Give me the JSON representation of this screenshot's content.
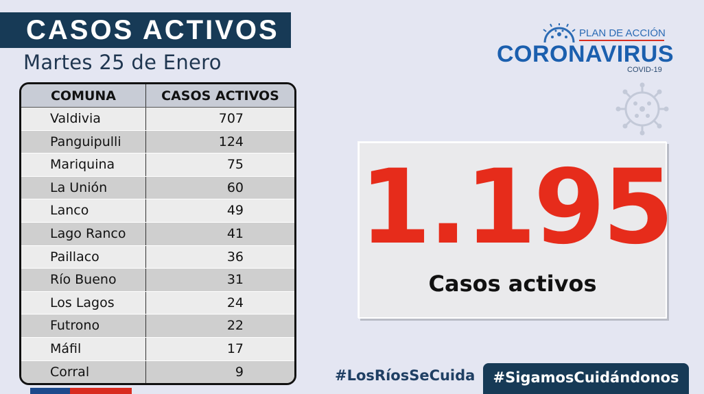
{
  "header": {
    "title": "CASOS ACTIVOS",
    "date": "Martes 25 de Enero"
  },
  "table": {
    "col1": "COMUNA",
    "col2": "CASOS ACTIVOS",
    "rows": [
      {
        "comuna": "Valdivia",
        "casos": "707"
      },
      {
        "comuna": "Panguipulli",
        "casos": "124"
      },
      {
        "comuna": "Mariquina",
        "casos": "75"
      },
      {
        "comuna": "La Unión",
        "casos": "60"
      },
      {
        "comuna": "Lanco",
        "casos": "49"
      },
      {
        "comuna": "Lago Ranco",
        "casos": "41"
      },
      {
        "comuna": "Paillaco",
        "casos": "36"
      },
      {
        "comuna": "Río Bueno",
        "casos": "31"
      },
      {
        "comuna": "Los Lagos",
        "casos": "24"
      },
      {
        "comuna": "Futrono",
        "casos": "22"
      },
      {
        "comuna": "Máfil",
        "casos": "17"
      },
      {
        "comuna": "Corral",
        "casos": "9"
      }
    ]
  },
  "logo": {
    "plan": "PLAN DE ACCIÓN",
    "main": "CORONAVIRUS",
    "sub": "COVID-19",
    "icon": "virus-icon"
  },
  "summary": {
    "total": "1.195",
    "label": "Casos activos"
  },
  "footer": {
    "hashtag1": "#LosRíosSeCuida",
    "hashtag2": "#SigamosCuidándonos"
  },
  "colors": {
    "navy": "#173a56",
    "red": "#e62c1b",
    "blue": "#1b5fae",
    "background": "#e4e6f2"
  }
}
